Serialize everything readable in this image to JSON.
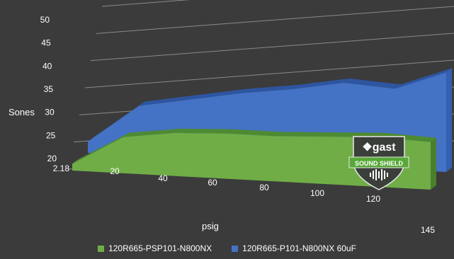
{
  "chart_data": {
    "type": "area",
    "view": "3d",
    "x": [
      "2.18",
      "20",
      "40",
      "60",
      "80",
      "100",
      "120",
      "145"
    ],
    "xlabel": "psig",
    "ylabel": "Sones",
    "ylim": [
      20,
      50
    ],
    "yticks": [
      20,
      25,
      30,
      35,
      40,
      45,
      50
    ],
    "grid": true,
    "legend": "bottom",
    "series": [
      {
        "name": "120R665-P101-N800NX 60uF",
        "color": "#4472c4",
        "values": [
          22.5,
          31,
          33,
          35,
          36.5,
          38.5,
          37.8,
          42
        ]
      },
      {
        "name": "120R665-PSP101-N800NX",
        "color": "#70ad47",
        "values": [
          21.5,
          28,
          29.5,
          30,
          30,
          30.5,
          31,
          30.5
        ]
      }
    ],
    "logo": {
      "brand": "gast",
      "tagline": "SOUND SHIELD"
    }
  }
}
